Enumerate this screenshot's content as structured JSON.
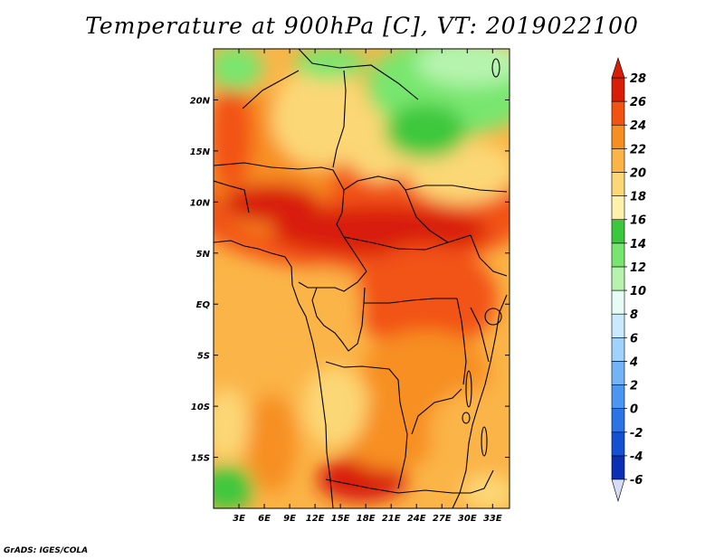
{
  "title": "Temperature at 900hPa [C], VT: 2019022100",
  "credit": "GrADS: IGES/COLA",
  "map": {
    "lon_range": [
      0,
      35
    ],
    "lat_range": [
      -20,
      25
    ],
    "lon_ticks": [
      "3E",
      "6E",
      "9E",
      "12E",
      "15E",
      "18E",
      "21E",
      "24E",
      "27E",
      "30E",
      "33E"
    ],
    "lon_tick_values": [
      3,
      6,
      9,
      12,
      15,
      18,
      21,
      24,
      27,
      30,
      33
    ],
    "lat_ticks": [
      "20N",
      "15N",
      "10N",
      "5N",
      "EQ",
      "5S",
      "10S",
      "15S"
    ],
    "lat_tick_values": [
      20,
      15,
      10,
      5,
      0,
      -5,
      -10,
      -15
    ]
  },
  "colorbar": {
    "levels": [
      "-6",
      "-4",
      "-2",
      "0",
      "2",
      "4",
      "6",
      "8",
      "10",
      "12",
      "14",
      "16",
      "18",
      "20",
      "22",
      "24",
      "26",
      "28"
    ],
    "colors": [
      "#1f0a78",
      "#0a2fb4",
      "#1450d2",
      "#2a74e6",
      "#4a96f0",
      "#72b4f6",
      "#a0d2fa",
      "#c8eafc",
      "#e6fcf4",
      "#b6f4ae",
      "#78e66e",
      "#3cc83c",
      "#fff0aa",
      "#fcd776",
      "#fbb447",
      "#f78f20",
      "#f25312",
      "#d81e07",
      "#a00a0a"
    ],
    "under_color": "#d6dcf8",
    "over_color": "#d81e07"
  }
}
